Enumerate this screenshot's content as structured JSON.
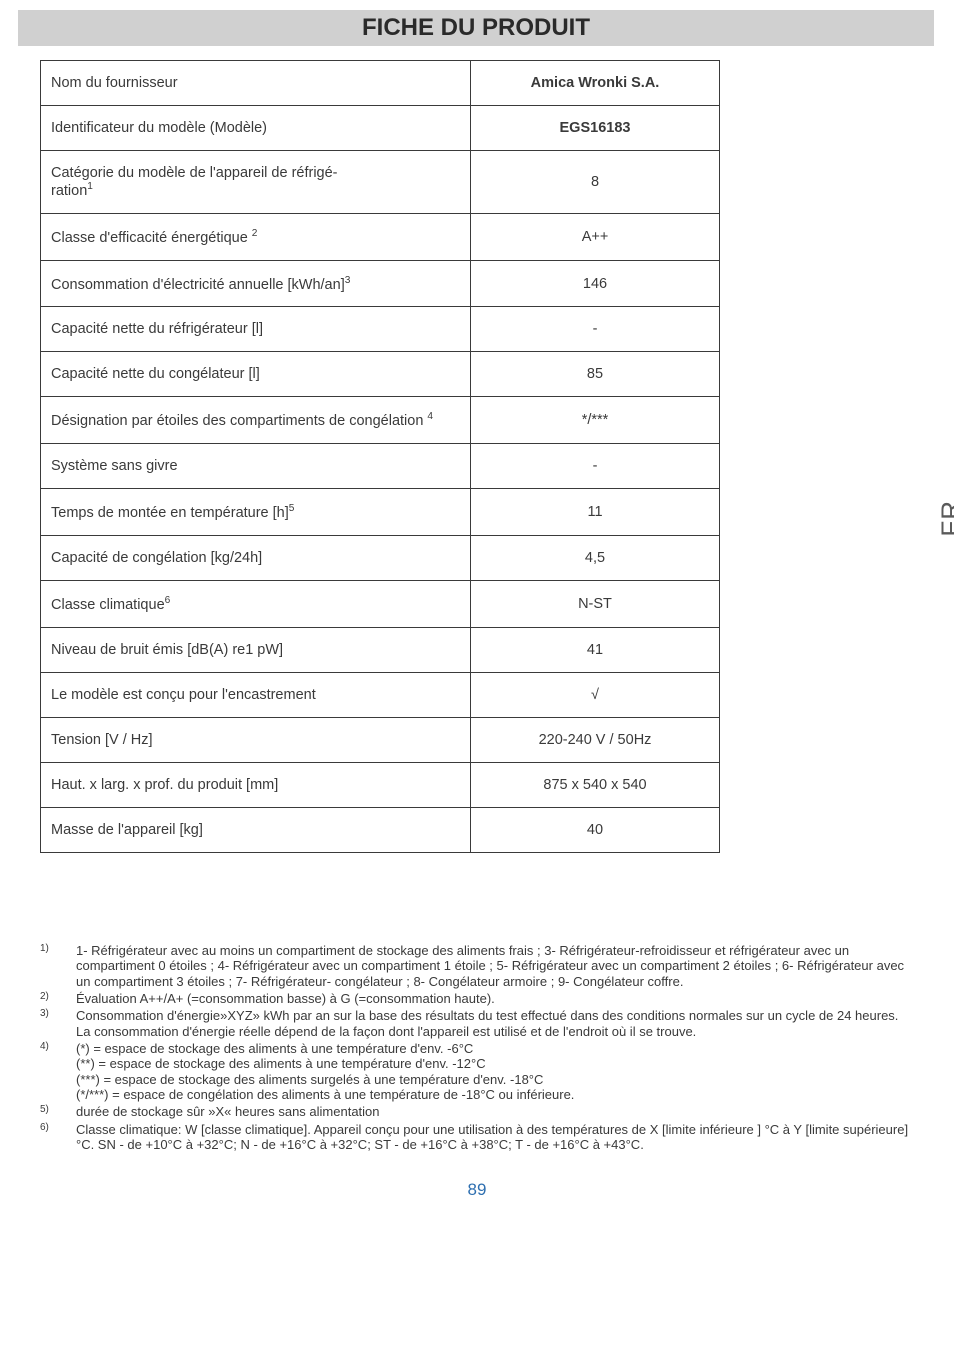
{
  "title": "FICHE DU PRODUIT",
  "side_tab": "FR",
  "page_number": "89",
  "table": {
    "rows": [
      {
        "label": "Nom du fournisseur",
        "value": "Amica Wronki S.A.",
        "head": true
      },
      {
        "label": "Identificateur du modèle (Modèle)",
        "value": "EGS16183",
        "head": true
      },
      {
        "label": "Catégorie du modèle de l'appareil de réfrigé-\nration",
        "sup": "1",
        "value": "8"
      },
      {
        "label": "Classe d'efficacité énergétique ",
        "sup": "2",
        "value": "A++"
      },
      {
        "label": "Consommation d'électricité annuelle  [kWh/an]",
        "sup": "3",
        "value": "146"
      },
      {
        "label": "Capacité nette du réfrigérateur [l]",
        "value": "-"
      },
      {
        "label": "Capacité nette du congélateur [l]",
        "value": "85"
      },
      {
        "label": "Désignation par étoiles des compartiments de congélation ",
        "sup": "4",
        "value": "*/***"
      },
      {
        "label": "Système sans givre",
        "value": "-"
      },
      {
        "label": "Temps de montée en température [h]",
        "sup": "5",
        "value": "11"
      },
      {
        "label": "Capacité de congélation  [kg/24h]",
        "value": "4,5"
      },
      {
        "label": "Classe climatique",
        "sup": "6",
        "value": "N-ST"
      },
      {
        "label": "Niveau de bruit émis [dB(A) re1 pW]",
        "value": "41"
      },
      {
        "label": "Le modèle est conçu pour l'encastrement",
        "value": "√"
      },
      {
        "label": "Tension [V / Hz]",
        "value": "220-240 V / 50Hz"
      },
      {
        "label": "Haut. x larg. x prof. du produit [mm]",
        "value": "875 x 540 x 540"
      },
      {
        "label": "Masse de l'appareil [kg]",
        "value": "40"
      }
    ]
  },
  "footnotes": [
    {
      "num": "1)",
      "text": "1- Réfrigérateur avec au moins un compartiment de stockage des aliments frais ; 3- Réfrigérateur-refroidisseur et réfrigérateur avec un compartiment 0 étoiles ; 4- Réfrigérateur  avec un compartiment 1 étoile ; 5- Réfrigérateur avec un compartiment 2 étoiles ; 6- Réfrigérateur  avec un compartiment 3 étoiles ; 7- Réfrigérateur- congélateur ; 8- Congélateur armoire ; 9- Congélateur coffre."
    },
    {
      "num": "2)",
      "text": "Évaluation A++/A+ (=consommation basse) à G (=consommation haute)."
    },
    {
      "num": "3)",
      "text": "Consommation d'énergie»XYZ» kWh  par an sur la base des résultats du test effectué dans des conditions normales sur un cycle de 24 heures.  La consommation d'énergie réelle dépend de la façon dont l'appareil est utilisé et de l'endroit où il se trouve."
    },
    {
      "num": "4)",
      "text": "(*) = espace de stockage des aliments à une température d'env. -6°C\n(**) = espace de stockage des aliments à une température d'env. -12°C\n(***) = espace de stockage des aliments surgelés à une température d'env. -18°C\n(*/***) = espace de congélation des aliments à une température de -18°C ou inférieure."
    },
    {
      "num": "5)",
      "text": "durée de stockage sûr  »X« heures sans alimentation"
    },
    {
      "num": "6)",
      "text": "Classe climatique: W [classe climatique]. Appareil conçu pour une utilisation à des températures de X [limite inférieure ] °C à Y [limite supérieure] °C. SN - de +10°C à +32°C; N - de +16°C à +32°C; ST - de +16°C à +38°C; T - de +16°C à +43°C."
    }
  ]
}
